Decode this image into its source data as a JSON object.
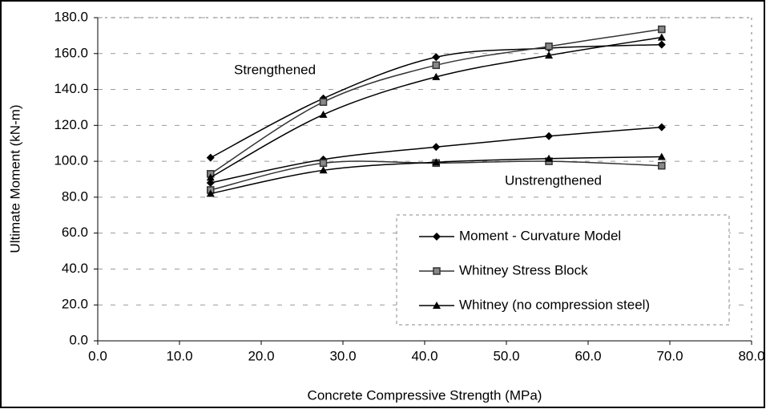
{
  "chart_data": {
    "type": "line",
    "x_label": "Concrete Compressive Strength (MPa)",
    "y_label": "Ultimate Moment (kN-m)",
    "x": [
      13.8,
      27.6,
      41.4,
      55.2,
      69.0
    ],
    "xlim": [
      0,
      80
    ],
    "xticks": [
      {
        "value": 0,
        "label": "0.0"
      },
      {
        "value": 10,
        "label": "10.0"
      },
      {
        "value": 20,
        "label": "20.0"
      },
      {
        "value": 30,
        "label": "30.0"
      },
      {
        "value": 40,
        "label": "40.0"
      },
      {
        "value": 50,
        "label": "50.0"
      },
      {
        "value": 60,
        "label": "60.0"
      },
      {
        "value": 70,
        "label": "70.0"
      },
      {
        "value": 80,
        "label": "80.0"
      }
    ],
    "ylim": [
      0,
      180
    ],
    "yticks": [
      {
        "value": 0,
        "label": "0.0"
      },
      {
        "value": 20,
        "label": "20.0"
      },
      {
        "value": 40,
        "label": "40.0"
      },
      {
        "value": 60,
        "label": "60.0"
      },
      {
        "value": 80,
        "label": "80.0"
      },
      {
        "value": 100,
        "label": "100.0"
      },
      {
        "value": 120,
        "label": "120.0"
      },
      {
        "value": 140,
        "label": "140.0"
      },
      {
        "value": 160,
        "label": "160.0"
      },
      {
        "value": 180,
        "label": "180.0"
      }
    ],
    "grid": true,
    "legend": "lower right",
    "annotations": [
      "Strengthened",
      "Unstrengthened"
    ],
    "series": [
      {
        "name": "Moment - Curvature Model",
        "marker": "diamond",
        "color": "#000000",
        "strengthened": [
          102,
          135,
          158,
          163,
          165
        ],
        "unstrengthened": [
          88,
          101,
          108,
          114,
          119
        ]
      },
      {
        "name": "Whitney Stress Block",
        "marker": "square",
        "color": "#333333",
        "strengthened": [
          93,
          133,
          153.5,
          164,
          173.5
        ],
        "unstrengthened": [
          84,
          99,
          99,
          100,
          97.5
        ]
      },
      {
        "name": "Whitney (no compression steel)",
        "marker": "triangle",
        "color": "#000000",
        "strengthened": [
          91,
          126,
          147,
          159,
          169
        ],
        "unstrengthened": [
          82,
          95,
          99.5,
          101.5,
          102.5
        ]
      }
    ]
  }
}
